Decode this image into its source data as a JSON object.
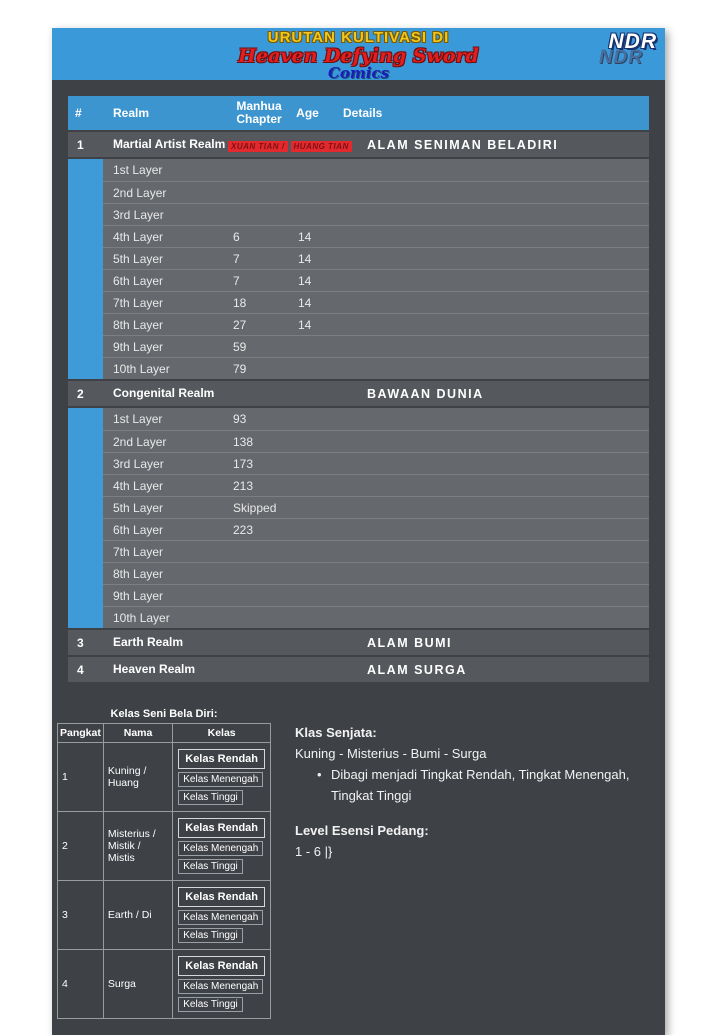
{
  "banner": {
    "line1": "URUTAN KULTIVASI DI",
    "line2": "Heaven Defying Sword",
    "line3": "Comics",
    "logo_text": "NDR",
    "logo_shadow_text": "NDR"
  },
  "main_table": {
    "columns": [
      "#",
      "Realm",
      "Manhua Chapter",
      "Age",
      "Details"
    ],
    "groups": [
      {
        "num": "1",
        "realm": "Martial Artist Realm",
        "chapter_note": [
          "XUAN TIAN /",
          "HUANG TIAN"
        ],
        "details": "ALAM SENIMAN BELADIRI",
        "layers": [
          {
            "layer": "1st Layer",
            "chapter": "",
            "age": ""
          },
          {
            "layer": "2nd Layer",
            "chapter": "",
            "age": ""
          },
          {
            "layer": "3rd Layer",
            "chapter": "",
            "age": ""
          },
          {
            "layer": "4th Layer",
            "chapter": "6",
            "age": "14"
          },
          {
            "layer": "5th Layer",
            "chapter": "7",
            "age": "14"
          },
          {
            "layer": "6th Layer",
            "chapter": "7",
            "age": "14"
          },
          {
            "layer": "7th Layer",
            "chapter": "18",
            "age": "14"
          },
          {
            "layer": "8th Layer",
            "chapter": "27",
            "age": "14"
          },
          {
            "layer": "9th Layer",
            "chapter": "59",
            "age": ""
          },
          {
            "layer": "10th Layer",
            "chapter": "79",
            "age": ""
          }
        ]
      },
      {
        "num": "2",
        "realm": "Congenital Realm",
        "details": "BAWAAN DUNIA",
        "layers": [
          {
            "layer": "1st Layer",
            "chapter": "93",
            "age": ""
          },
          {
            "layer": "2nd Layer",
            "chapter": "138",
            "age": ""
          },
          {
            "layer": "3rd Layer",
            "chapter": "173",
            "age": ""
          },
          {
            "layer": "4th Layer",
            "chapter": "213",
            "age": ""
          },
          {
            "layer": "5th Layer",
            "chapter": "Skipped",
            "age": ""
          },
          {
            "layer": "6th Layer",
            "chapter": "223",
            "age": ""
          },
          {
            "layer": "7th Layer",
            "chapter": "",
            "age": ""
          },
          {
            "layer": "8th Layer",
            "chapter": "",
            "age": ""
          },
          {
            "layer": "9th Layer",
            "chapter": "",
            "age": ""
          },
          {
            "layer": "10th Layer",
            "chapter": "",
            "age": ""
          }
        ]
      },
      {
        "num": "3",
        "realm": "Earth Realm",
        "details": "ALAM BUMI",
        "layers": []
      },
      {
        "num": "4",
        "realm": "Heaven Realm",
        "details": "ALAM SURGA",
        "layers": []
      }
    ]
  },
  "martial_class_table": {
    "title": "Kelas Seni Bela Diri:",
    "columns": [
      "Pangkat",
      "Nama",
      "Kelas"
    ],
    "rows": [
      {
        "rank": "1",
        "name": "Kuning / Huang",
        "classes": [
          "Kelas Rendah",
          "Kelas Menengah",
          "Kelas Tinggi"
        ]
      },
      {
        "rank": "2",
        "name": "Misterius / Mistik / Mistis",
        "classes": [
          "Kelas Rendah",
          "Kelas Menengah",
          "Kelas Tinggi"
        ]
      },
      {
        "rank": "3",
        "name": "Earth / Di",
        "classes": [
          "Kelas Rendah",
          "Kelas Menengah",
          "Kelas Tinggi"
        ]
      },
      {
        "rank": "4",
        "name": "Surga",
        "classes": [
          "Kelas Rendah",
          "Kelas Menengah",
          "Kelas Tinggi"
        ]
      }
    ]
  },
  "weapon_info": {
    "title": "Klas Senjata:",
    "subtitle": "Kuning - Misterius - Bumi - Surga",
    "bullet": "Dibagi menjadi Tingkat Rendah, Tingkat Menengah, Tingkat Tinggi",
    "sword_title": "Level Esensi Pedang:",
    "sword_value": "1 - 6 |}"
  },
  "colors": {
    "accent_blue": "#3a9ad9",
    "panel_dark": "#3e4146",
    "realm_row": "#55585d",
    "layer_row": "#65686d",
    "note_red": "#e22a2e",
    "banner_yellow": "#f2c71d",
    "banner_red": "#e31e1e",
    "banner_navy": "#1c1cb8"
  }
}
